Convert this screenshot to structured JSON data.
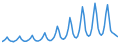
{
  "chart_data": {
    "type": "line",
    "color": "#3b8fd9",
    "tick_labels": false,
    "grid": false,
    "xlim": [
      0,
      74
    ],
    "ylim": [
      5,
      100
    ],
    "values": [
      10,
      12,
      15,
      20,
      14,
      11,
      10,
      9,
      11,
      13,
      17,
      22,
      15,
      12,
      10,
      10,
      12,
      14,
      18,
      24,
      16,
      12,
      11,
      11,
      13,
      16,
      22,
      30,
      20,
      14,
      12,
      12,
      15,
      20,
      30,
      45,
      35,
      20,
      16,
      15,
      18,
      25,
      40,
      65,
      50,
      28,
      20,
      18,
      22,
      35,
      60,
      90,
      70,
      35,
      25,
      22,
      25,
      40,
      70,
      98,
      75,
      40,
      28,
      24,
      28,
      45,
      75,
      95,
      65,
      35,
      30,
      28,
      25,
      22,
      20
    ]
  }
}
